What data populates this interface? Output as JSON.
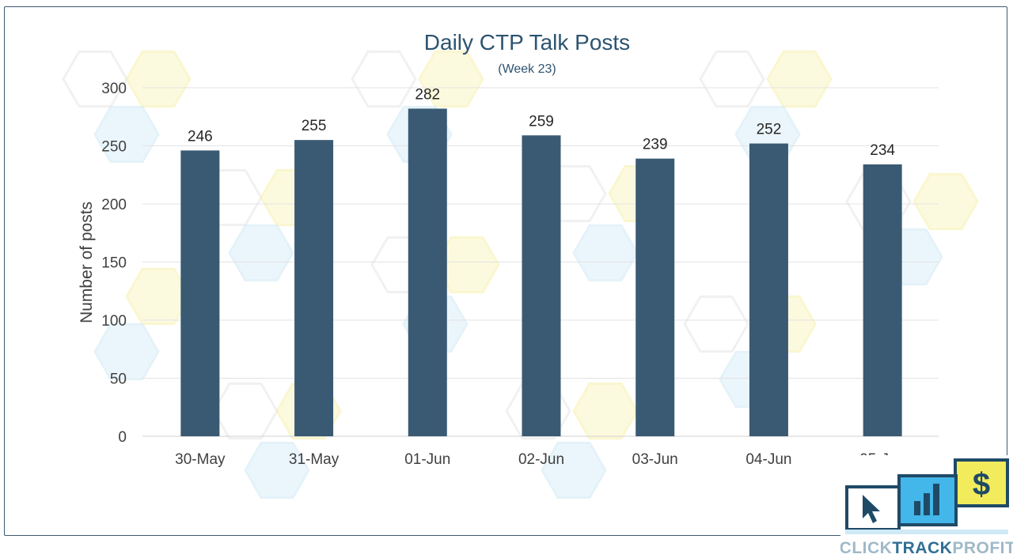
{
  "chart_data": {
    "type": "bar",
    "title": "Daily CTP Talk Posts",
    "subtitle": "(Week 23)",
    "ylabel": "Number of posts",
    "xlabel": "",
    "categories": [
      "30-May",
      "31-May",
      "01-Jun",
      "02-Jun",
      "03-Jun",
      "04-Jun",
      "05-Jun"
    ],
    "values": [
      246,
      255,
      282,
      259,
      239,
      252,
      234
    ],
    "ylim": [
      0,
      300
    ],
    "yticks": [
      0,
      50,
      100,
      150,
      200,
      250,
      300
    ],
    "grid": true,
    "legend": "none",
    "bar_color": "#3a5a73"
  },
  "logo": {
    "text_1": "CLICK",
    "text_2": "TRACK",
    "text_3": "PROFIT",
    "dollar": "$",
    "icons": [
      "cursor-icon",
      "bar-chart-icon",
      "dollar-icon"
    ],
    "colors": {
      "yellow": "#f2ec5c",
      "blue": "#43b6ea",
      "navy": "#1f4a66"
    }
  }
}
